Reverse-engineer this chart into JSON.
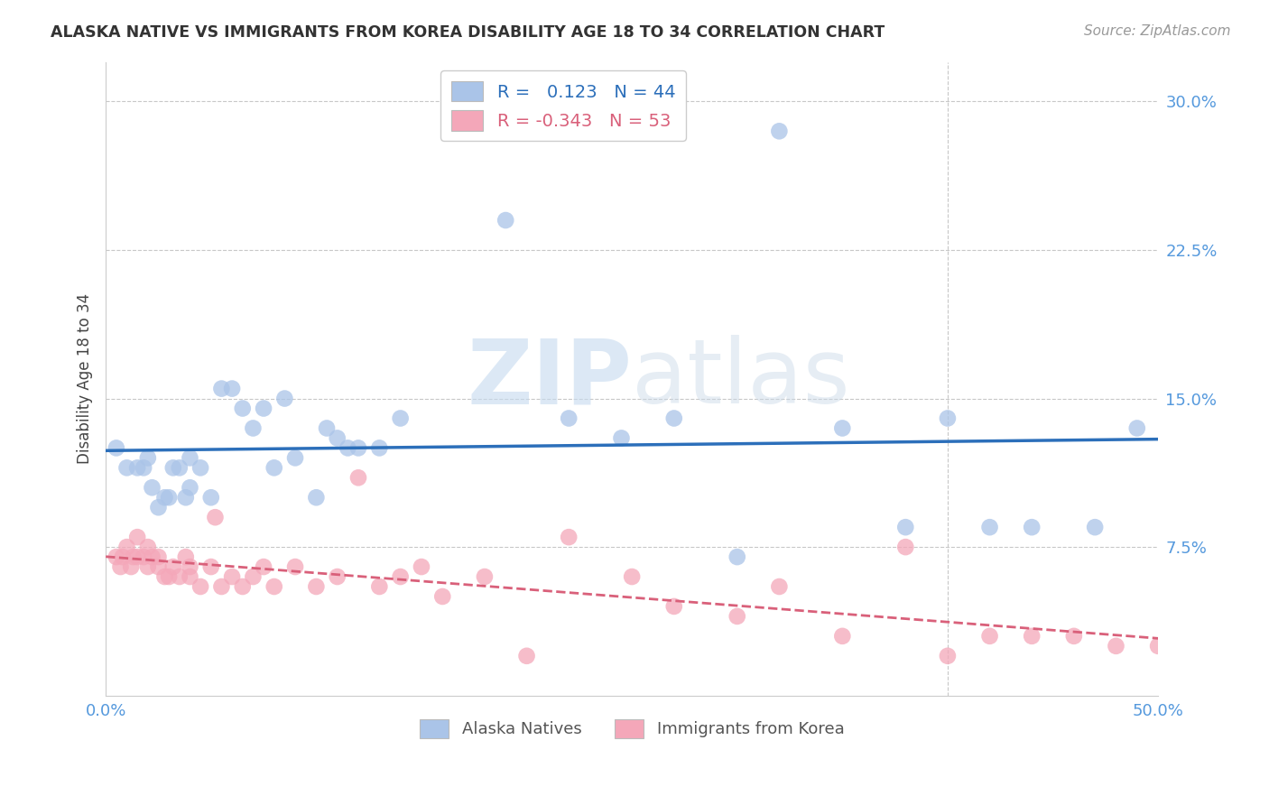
{
  "title": "ALASKA NATIVE VS IMMIGRANTS FROM KOREA DISABILITY AGE 18 TO 34 CORRELATION CHART",
  "source": "Source: ZipAtlas.com",
  "ylabel": "Disability Age 18 to 34",
  "xlim": [
    0.0,
    0.5
  ],
  "ylim": [
    0.0,
    0.32
  ],
  "xticks": [
    0.0,
    0.1,
    0.2,
    0.3,
    0.4,
    0.5
  ],
  "xticklabels": [
    "0.0%",
    "",
    "",
    "",
    "",
    "50.0%"
  ],
  "yticks": [
    0.0,
    0.075,
    0.15,
    0.225,
    0.3
  ],
  "yticklabels": [
    "",
    "7.5%",
    "15.0%",
    "22.5%",
    "30.0%"
  ],
  "grid_color": "#c8c8c8",
  "background_color": "#ffffff",
  "watermark": "ZIPatlas",
  "alaska_color": "#aac4e8",
  "korea_color": "#f4a7b9",
  "alaska_line_color": "#2c6fba",
  "korea_line_color": "#d9607a",
  "tick_color": "#5599dd",
  "legend_R_alaska": "0.123",
  "legend_N_alaska": "44",
  "legend_R_korea": "-0.343",
  "legend_N_korea": "53",
  "alaska_x": [
    0.005,
    0.01,
    0.015,
    0.018,
    0.02,
    0.022,
    0.025,
    0.028,
    0.03,
    0.032,
    0.035,
    0.038,
    0.04,
    0.04,
    0.045,
    0.05,
    0.055,
    0.06,
    0.065,
    0.07,
    0.075,
    0.08,
    0.085,
    0.09,
    0.1,
    0.105,
    0.11,
    0.115,
    0.12,
    0.13,
    0.14,
    0.19,
    0.22,
    0.245,
    0.27,
    0.3,
    0.32,
    0.35,
    0.38,
    0.4,
    0.42,
    0.44,
    0.47,
    0.49
  ],
  "alaska_y": [
    0.125,
    0.115,
    0.115,
    0.115,
    0.12,
    0.105,
    0.095,
    0.1,
    0.1,
    0.115,
    0.115,
    0.1,
    0.105,
    0.12,
    0.115,
    0.1,
    0.155,
    0.155,
    0.145,
    0.135,
    0.145,
    0.115,
    0.15,
    0.12,
    0.1,
    0.135,
    0.13,
    0.125,
    0.125,
    0.125,
    0.14,
    0.24,
    0.14,
    0.13,
    0.14,
    0.07,
    0.285,
    0.135,
    0.085,
    0.14,
    0.085,
    0.085,
    0.085,
    0.135
  ],
  "korea_x": [
    0.005,
    0.007,
    0.008,
    0.01,
    0.012,
    0.013,
    0.015,
    0.015,
    0.018,
    0.02,
    0.02,
    0.022,
    0.025,
    0.025,
    0.028,
    0.03,
    0.032,
    0.035,
    0.038,
    0.04,
    0.04,
    0.045,
    0.05,
    0.052,
    0.055,
    0.06,
    0.065,
    0.07,
    0.075,
    0.08,
    0.09,
    0.1,
    0.11,
    0.12,
    0.13,
    0.14,
    0.15,
    0.16,
    0.18,
    0.2,
    0.22,
    0.25,
    0.27,
    0.3,
    0.32,
    0.35,
    0.38,
    0.4,
    0.42,
    0.44,
    0.46,
    0.48,
    0.5
  ],
  "korea_y": [
    0.07,
    0.065,
    0.07,
    0.075,
    0.065,
    0.07,
    0.07,
    0.08,
    0.07,
    0.075,
    0.065,
    0.07,
    0.07,
    0.065,
    0.06,
    0.06,
    0.065,
    0.06,
    0.07,
    0.065,
    0.06,
    0.055,
    0.065,
    0.09,
    0.055,
    0.06,
    0.055,
    0.06,
    0.065,
    0.055,
    0.065,
    0.055,
    0.06,
    0.11,
    0.055,
    0.06,
    0.065,
    0.05,
    0.06,
    0.02,
    0.08,
    0.06,
    0.045,
    0.04,
    0.055,
    0.03,
    0.075,
    0.02,
    0.03,
    0.03,
    0.03,
    0.025,
    0.025
  ]
}
